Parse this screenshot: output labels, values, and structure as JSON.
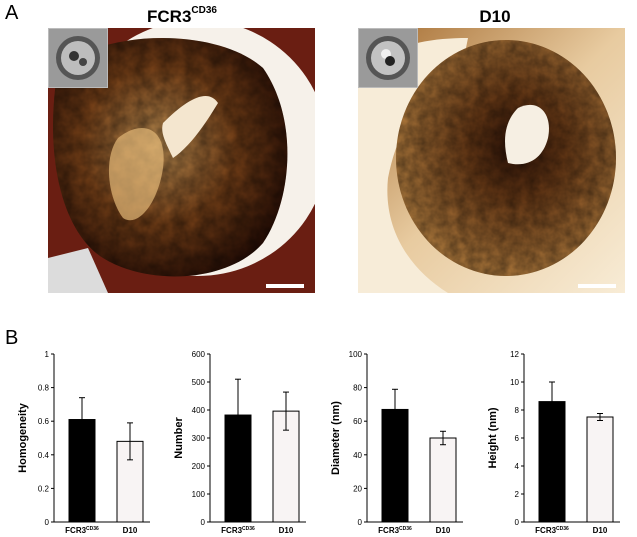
{
  "figure": {
    "panel_a_label": "A",
    "panel_b_label": "B",
    "images": [
      {
        "title_main": "FCR3",
        "title_sup": "CD36"
      },
      {
        "title_main": "D10",
        "title_sup": ""
      }
    ]
  },
  "colors": {
    "afm_dark": "#2a0e05",
    "afm_mid": "#8a5220",
    "afm_light": "#f3ddb2",
    "afm_bg": "#6a1e12",
    "bar_fcr3": "#000000",
    "bar_d10": "#f8f4f4"
  },
  "chart_data": [
    {
      "type": "bar",
      "categories_main": [
        "FCR3",
        "D10"
      ],
      "categories_sup": [
        "CD36",
        ""
      ],
      "values": [
        0.61,
        0.48
      ],
      "errors": [
        0.13,
        0.11
      ],
      "ylabel": "Homogeneity",
      "ylim": [
        0,
        1
      ],
      "yticks": [
        0,
        0.2,
        0.4,
        0.6,
        0.8,
        1
      ],
      "ytick_labels": [
        "0",
        "0.2",
        "0.4",
        "0.6",
        "0.8",
        "1"
      ]
    },
    {
      "type": "bar",
      "categories_main": [
        "FCR3",
        "D10"
      ],
      "categories_sup": [
        "CD36",
        ""
      ],
      "values": [
        382,
        396
      ],
      "errors": [
        128,
        68
      ],
      "ylabel": "Number",
      "ylim": [
        0,
        600
      ],
      "yticks": [
        0,
        100,
        200,
        300,
        400,
        500,
        600
      ],
      "ytick_labels": [
        "0",
        "100",
        "200",
        "300",
        "400",
        "500",
        "600"
      ]
    },
    {
      "type": "bar",
      "categories_main": [
        "FCR3",
        "D10"
      ],
      "categories_sup": [
        "CD36",
        ""
      ],
      "values": [
        67,
        50
      ],
      "errors": [
        12,
        4
      ],
      "ylabel": "Diameter (nm)",
      "ylim": [
        0,
        100
      ],
      "yticks": [
        0,
        20,
        40,
        60,
        80,
        100
      ],
      "ytick_labels": [
        "0",
        "20",
        "40",
        "60",
        "80",
        "100"
      ]
    },
    {
      "type": "bar",
      "categories_main": [
        "FCR3",
        "D10"
      ],
      "categories_sup": [
        "CD36",
        ""
      ],
      "values": [
        8.6,
        7.5
      ],
      "errors": [
        1.4,
        0.25
      ],
      "ylabel": "Height (nm)",
      "ylim": [
        0,
        12
      ],
      "yticks": [
        0,
        2,
        4,
        6,
        8,
        10,
        12
      ],
      "ytick_labels": [
        "0",
        "2",
        "4",
        "6",
        "8",
        "10",
        "12"
      ]
    }
  ]
}
